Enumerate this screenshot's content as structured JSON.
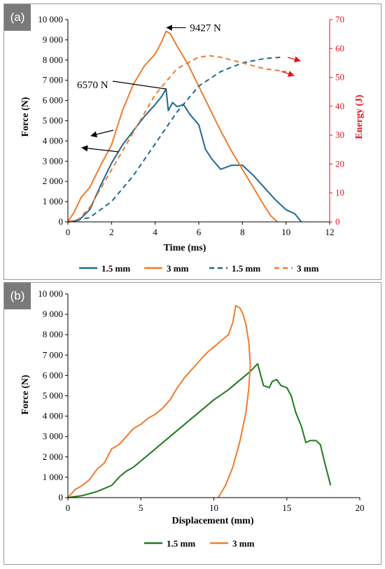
{
  "colors": {
    "blue": "#1f6a8e",
    "orange": "#f07b2c",
    "green": "#1b7a1b",
    "red": "#e8121b"
  },
  "chart_data": [
    {
      "panel_label": "(a)",
      "type": "line",
      "xlabel": "Time (ms)",
      "ylabel": "Force (N)",
      "y2label": "Energy (J)",
      "xlim": [
        0,
        12
      ],
      "ylim": [
        0,
        10000
      ],
      "y2lim": [
        0,
        70
      ],
      "xticks": [
        "0",
        "2",
        "4",
        "6",
        "8",
        "10",
        "12"
      ],
      "yticks": [
        "0",
        "1 000",
        "2 000",
        "3 000",
        "4 000",
        "5 000",
        "6 000",
        "7 000",
        "8 000",
        "9 000",
        "10 000"
      ],
      "y2ticks": [
        "0",
        "10",
        "20",
        "30",
        "40",
        "50",
        "60",
        "70"
      ],
      "grid": false,
      "legend_position": "bottom",
      "annotations": [
        {
          "text": "9427 N",
          "x": 4.5,
          "y": 9427
        },
        {
          "text": "6570 N",
          "x": 4.5,
          "y": 6570
        }
      ],
      "series": [
        {
          "name": "1.5 mm",
          "axis": "force",
          "style": "solid",
          "color": "#1f6a8e",
          "x": [
            0,
            0.5,
            1,
            1.5,
            2,
            2.5,
            3,
            3.5,
            4,
            4.3,
            4.5,
            4.6,
            4.8,
            5,
            5.3,
            5.6,
            6,
            6.3,
            6.6,
            7,
            7.5,
            8,
            8.5,
            9,
            9.5,
            10,
            10.4,
            10.7
          ],
          "y": [
            0,
            80,
            600,
            1800,
            2900,
            3800,
            4500,
            5200,
            5800,
            6200,
            6570,
            5500,
            5900,
            5700,
            5800,
            5300,
            4800,
            3600,
            3100,
            2600,
            2800,
            2800,
            2300,
            1700,
            1100,
            600,
            400,
            0
          ]
        },
        {
          "name": "3 mm",
          "axis": "force",
          "style": "solid",
          "color": "#f07b2c",
          "x": [
            0,
            0.3,
            0.6,
            1,
            1.5,
            2,
            2.5,
            3,
            3.5,
            4,
            4.3,
            4.5,
            4.7,
            5,
            5.5,
            6,
            6.5,
            7,
            7.5,
            8,
            8.5,
            9,
            9.3,
            9.6
          ],
          "y": [
            0,
            500,
            1200,
            1700,
            2800,
            3800,
            5500,
            6800,
            7700,
            8300,
            8900,
            9427,
            9300,
            8700,
            7800,
            6700,
            5600,
            4500,
            3500,
            2600,
            1700,
            800,
            300,
            0
          ]
        },
        {
          "name": "1.5 mm",
          "axis": "energy",
          "style": "dashed",
          "color": "#1f6a8e",
          "x": [
            0,
            1,
            2,
            3,
            4,
            5,
            6,
            7,
            8,
            9,
            9.8
          ],
          "y": [
            0,
            1.5,
            7,
            16,
            27,
            38,
            47,
            52,
            55,
            56.5,
            57
          ]
        },
        {
          "name": "3 mm",
          "axis": "energy",
          "style": "dashed",
          "color": "#f07b2c",
          "x": [
            0,
            0.5,
            1,
            2,
            3,
            4,
            5,
            6,
            6.5,
            7,
            7.5,
            8,
            9,
            10
          ],
          "y": [
            0,
            1,
            5,
            18,
            31,
            44,
            53,
            57,
            57.5,
            57,
            56,
            55,
            53,
            52
          ]
        }
      ]
    },
    {
      "panel_label": "(b)",
      "type": "line",
      "xlabel": "Displacement (mm)",
      "ylabel": "Force (N)",
      "xlim": [
        0,
        20
      ],
      "ylim": [
        0,
        10000
      ],
      "xticks": [
        "0",
        "5",
        "10",
        "15",
        "20"
      ],
      "yticks": [
        "0",
        "1 000",
        "2 000",
        "3 000",
        "4 000",
        "5 000",
        "6 000",
        "7 000",
        "8 000",
        "9 000",
        "10 000"
      ],
      "grid": false,
      "legend_position": "bottom",
      "series": [
        {
          "name": "1.5 mm",
          "color": "#1b7a1b",
          "x": [
            0,
            1,
            2,
            3,
            3.5,
            4,
            4.5,
            5,
            6,
            7,
            8,
            9,
            10,
            11,
            12,
            12.5,
            13,
            13.4,
            13.8,
            14,
            14.3,
            14.6,
            15,
            15.3,
            15.6,
            16,
            16.3,
            16.6,
            17,
            17.3,
            17.6,
            18
          ],
          "y": [
            0,
            100,
            300,
            600,
            1000,
            1300,
            1500,
            1800,
            2400,
            3000,
            3600,
            4200,
            4800,
            5300,
            5900,
            6200,
            6570,
            5500,
            5400,
            5700,
            5800,
            5500,
            5400,
            5000,
            4200,
            3500,
            2700,
            2800,
            2800,
            2600,
            1700,
            600
          ]
        },
        {
          "name": "3 mm",
          "color": "#f07b2c",
          "x": [
            0,
            0.5,
            1,
            1.5,
            2,
            2.5,
            3,
            3.5,
            4,
            4.5,
            5,
            5.5,
            6,
            6.5,
            7,
            7.5,
            8,
            8.5,
            9,
            9.5,
            10,
            10.5,
            11,
            11.3,
            11.5,
            11.8,
            12,
            12.2,
            12.4,
            12.5,
            12.4,
            12.2,
            11.8,
            11.3,
            10.8,
            10.3
          ],
          "y": [
            0,
            400,
            600,
            900,
            1400,
            1700,
            2400,
            2600,
            3000,
            3400,
            3600,
            3900,
            4100,
            4400,
            4800,
            5400,
            5900,
            6300,
            6700,
            7100,
            7400,
            7700,
            8000,
            8600,
            9427,
            9300,
            9000,
            8500,
            7600,
            6500,
            5400,
            4200,
            2800,
            1500,
            600,
            0
          ]
        }
      ]
    }
  ]
}
